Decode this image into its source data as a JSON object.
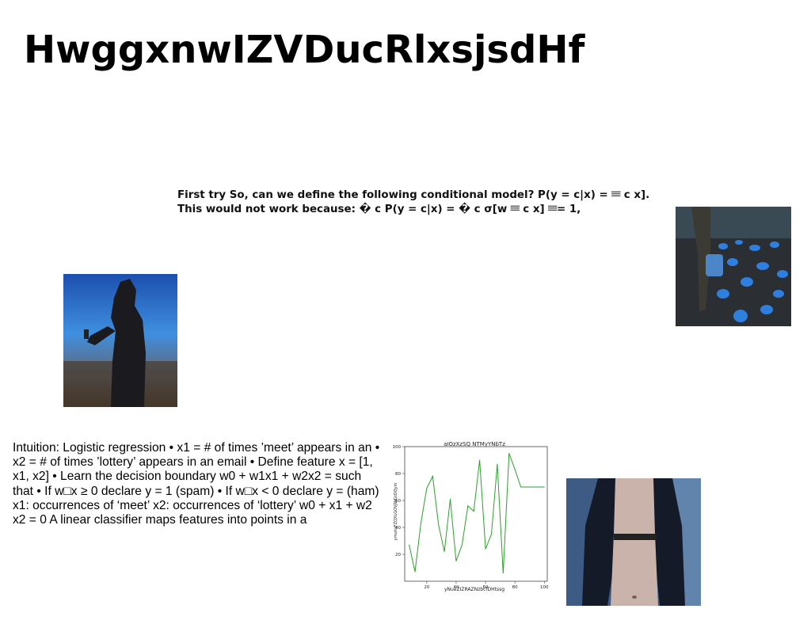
{
  "page": {
    "title": "HwggxnwIZVDucRlxsjsdHf",
    "paragraph_top": "First try So, can we define the following conditional model? P(y = c|x) = 𝄘 c x]. This would not work because: � c P(y = c|x) = � c σ[w 𝄘 c x] 𝄘= 1,",
    "paragraph_bottom": "Intuition: Logistic regression • x1 = # of times ’meet’ appears in an • x2 = # of times ’lottery’ appears in an email • Define feature x = [1, x1, x2] • Learn the decision boundary w0 + w1x1 + w2x2 = such that • If w□x ≥ 0 declare y = 1 (spam) • If w□x < 0 declare y = (ham) x1: occurrences of ‘meet’ x2: occurrences of ‘lottery’ w0 + x1 + w2 x2 = 0 A linear classifier maps features into points in a"
  },
  "images": {
    "photo_1": "person-with-phone-photo",
    "photo_2": "pumpkin-field-photo",
    "photo_3": "person-torso-photo"
  },
  "chart_data": {
    "type": "line",
    "title": "aIOzXzSQ NTMyYNbTz",
    "xlabel": "yNueZIZRAZNzbcfDHtssg",
    "ylabel": "ymuhxFZQXLGOVJWGtOQym",
    "xlim": [
      5,
      102
    ],
    "ylim": [
      0,
      100
    ],
    "xticks": [
      "20",
      "40",
      "60",
      "80",
      "100"
    ],
    "yticks": [
      "20",
      "40",
      "60",
      "80",
      "100"
    ],
    "line_color": "#2ca02c",
    "x": [
      8,
      12,
      16,
      20,
      24,
      28,
      32,
      36,
      40,
      44,
      48,
      52,
      56,
      60,
      64,
      68,
      72,
      76,
      80,
      84,
      88,
      92,
      96,
      100
    ],
    "values": [
      27,
      7,
      43,
      69,
      78,
      42,
      22,
      61,
      15,
      27,
      56,
      52,
      90,
      24,
      35,
      87,
      6,
      95,
      83,
      70,
      70,
      70,
      70,
      70
    ]
  }
}
